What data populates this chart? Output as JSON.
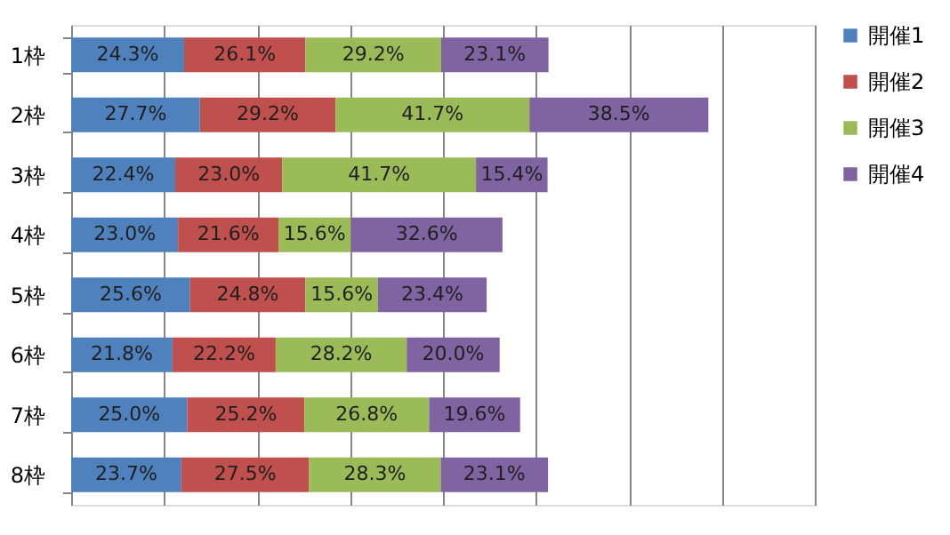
{
  "chart_data": {
    "type": "bar",
    "orientation": "horizontal",
    "stacked": true,
    "categories": [
      "1枠",
      "2枠",
      "3枠",
      "4枠",
      "5枠",
      "6枠",
      "7枠",
      "8枠"
    ],
    "series": [
      {
        "name": "開催1",
        "color": "#4f81bd",
        "values": [
          24.3,
          27.7,
          22.4,
          23.0,
          25.6,
          21.8,
          25.0,
          23.7
        ],
        "value_labels": [
          "24.3%",
          "27.7%",
          "22.4%",
          "23.0%",
          "25.6%",
          "21.8%",
          "25.0%",
          "23.7%"
        ]
      },
      {
        "name": "開催2",
        "color": "#c0504d",
        "values": [
          26.1,
          29.2,
          23.0,
          21.6,
          24.8,
          22.2,
          25.2,
          27.5
        ],
        "value_labels": [
          "26.1%",
          "29.2%",
          "23.0%",
          "21.6%",
          "24.8%",
          "22.2%",
          "25.2%",
          "27.5%"
        ]
      },
      {
        "name": "開催3",
        "color": "#9bbb59",
        "values": [
          29.2,
          41.7,
          41.7,
          15.6,
          15.6,
          28.2,
          26.8,
          28.3
        ],
        "value_labels": [
          "29.2%",
          "41.7%",
          "41.7%",
          "15.6%",
          "15.6%",
          "28.2%",
          "26.8%",
          "28.3%"
        ]
      },
      {
        "name": "開催4",
        "color": "#8064a2",
        "values": [
          23.1,
          38.5,
          15.4,
          32.6,
          23.4,
          20.0,
          19.6,
          23.1
        ],
        "value_labels": [
          "23.1%",
          "38.5%",
          "15.4%",
          "32.6%",
          "23.4%",
          "20.0%",
          "19.6%",
          "23.1%"
        ]
      }
    ],
    "xlim": [
      0,
      160
    ],
    "xticks": [
      {
        "value": 0,
        "label": null
      },
      {
        "value": 20,
        "label": null
      },
      {
        "value": 40,
        "label": null
      },
      {
        "value": 60,
        "label": null
      },
      {
        "value": 80,
        "label": null
      },
      {
        "value": 100,
        "label": null
      },
      {
        "value": 120,
        "label": null
      },
      {
        "value": 140,
        "label": null
      },
      {
        "value": 160,
        "label": null
      }
    ],
    "tick_labels": "y",
    "grid": "x",
    "legend": "right"
  }
}
